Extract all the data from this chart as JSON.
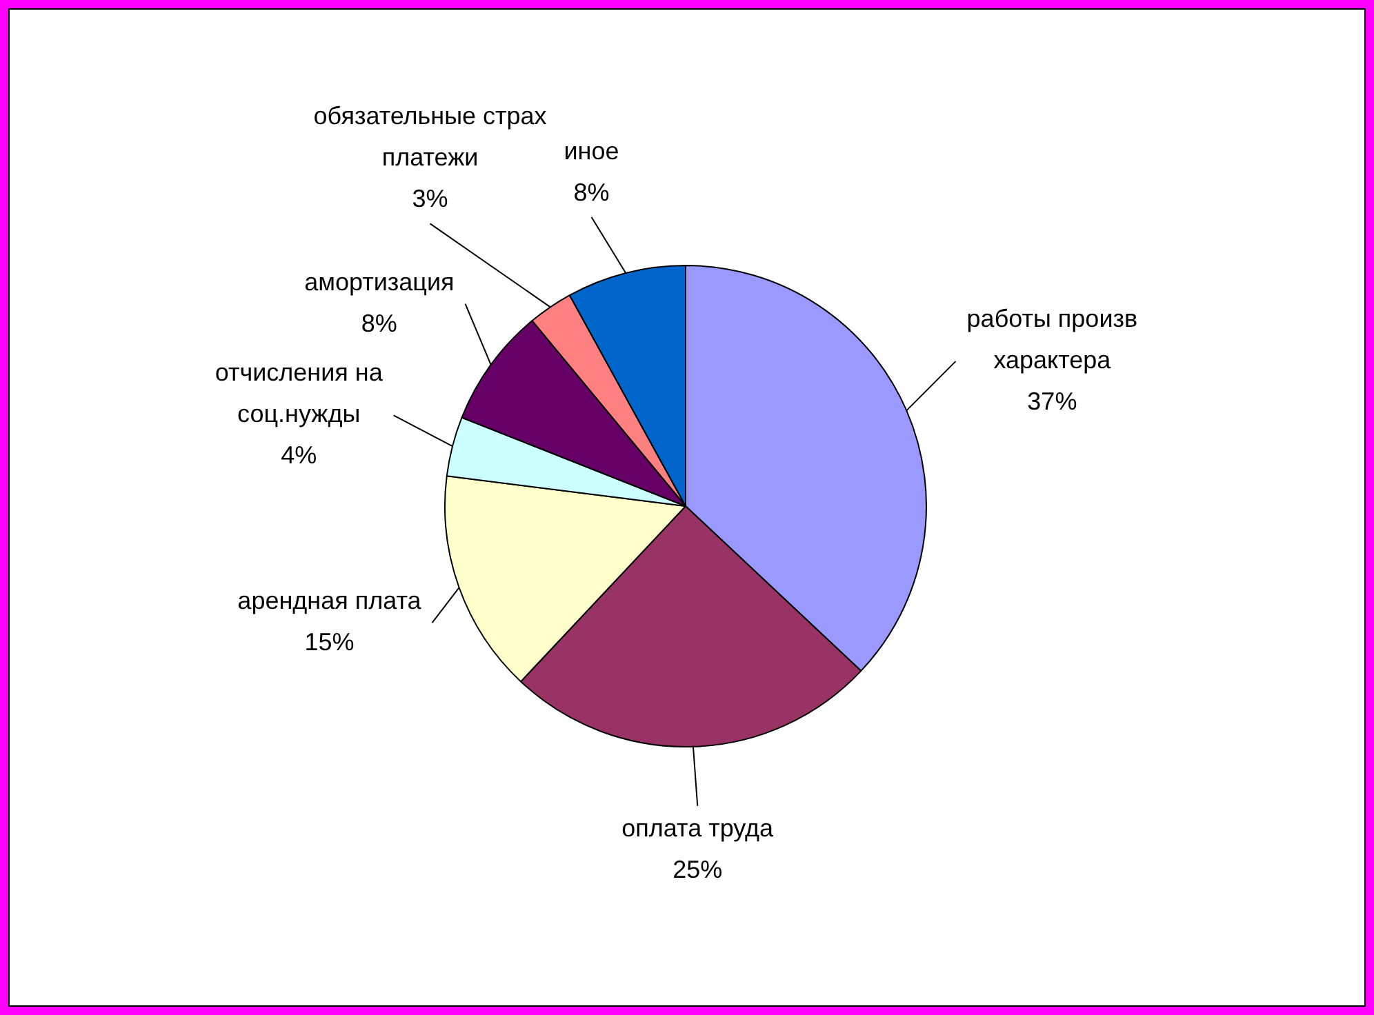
{
  "chart_data": {
    "type": "pie",
    "categories": [
      "работы произв характера",
      "оплата труда",
      "арендная плата",
      "отчисления на соц.нужды",
      "амортизация",
      "обязательные страх платежи",
      "иное"
    ],
    "values": [
      37,
      25,
      15,
      4,
      8,
      3,
      8
    ],
    "colors": [
      "#9999ff",
      "#993366",
      "#ffffcc",
      "#ccffff",
      "#660066",
      "#ff8080",
      "#0066cc"
    ],
    "value_labels": [
      "37%",
      "25%",
      "15%",
      "4%",
      "8%",
      "3%",
      "8%"
    ],
    "legend": false
  }
}
